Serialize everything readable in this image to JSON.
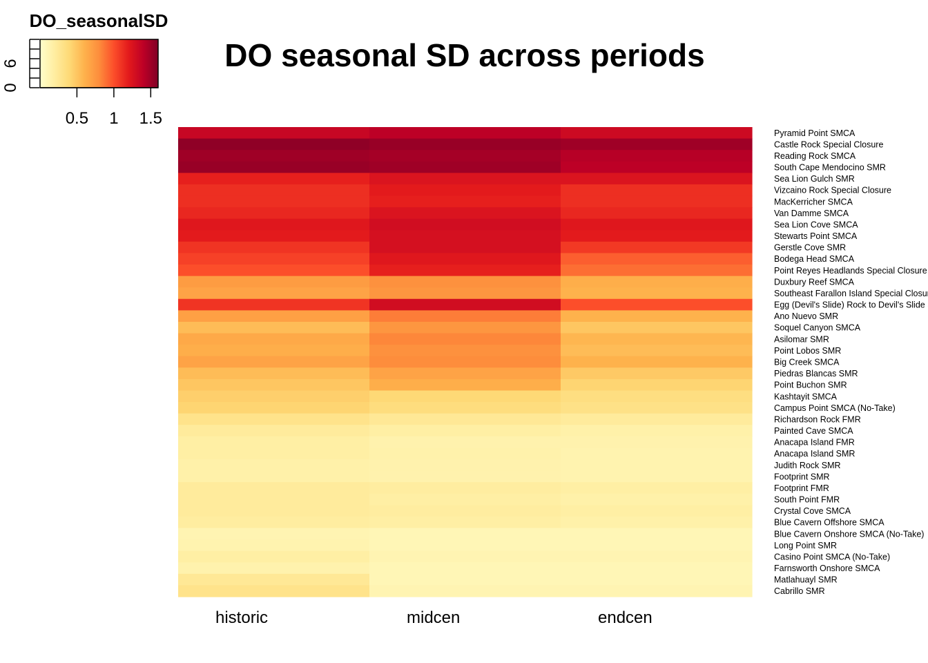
{
  "chart_data": {
    "type": "heatmap",
    "title": "DO seasonal SD across periods",
    "columns": [
      "historic",
      "midcen",
      "endcen"
    ],
    "row_labels": [
      "Pyramid Point SMCA",
      "Castle Rock Special Closure",
      "Reading Rock SMCA",
      "South Cape Mendocino SMR",
      "Sea Lion Gulch SMR",
      "Vizcaino Rock Special Closure",
      "MacKerricher SMCA",
      "Van Damme SMCA",
      "Sea Lion Cove SMCA",
      "Stewarts Point SMCA",
      "Gerstle Cove SMR",
      "Bodega Head SMCA",
      "Point Reyes Headlands Special Closure",
      "Duxbury Reef SMCA",
      "Southeast Farallon Island Special Closure",
      "Egg (Devil's Slide) Rock to Devil's Slide Special Closure",
      "Ano Nuevo SMR",
      "Soquel Canyon SMCA",
      "Asilomar SMR",
      "Point Lobos SMR",
      "Big Creek SMCA",
      "Piedras Blancas SMR",
      "Point Buchon SMR",
      "Kashtayit SMCA",
      "Campus Point SMCA (No-Take)",
      "Richardson Rock FMR",
      "Painted Cave SMCA",
      "Anacapa Island FMR",
      "Anacapa Island SMR",
      "Judith Rock SMR",
      "Footprint SMR",
      "Footprint FMR",
      "South Point FMR",
      "Crystal Cove SMCA",
      "Blue Cavern Offshore SMCA",
      "Blue Cavern Onshore SMCA (No-Take)",
      "Long Point SMR",
      "Casino Point SMCA (No-Take)",
      "Farnsworth Onshore SMCA",
      "Matlahuayl SMR",
      "Cabrillo SMR"
    ],
    "values": [
      [
        1.35,
        1.4,
        1.32
      ],
      [
        1.55,
        1.52,
        1.5
      ],
      [
        1.5,
        1.48,
        1.42
      ],
      [
        1.52,
        1.5,
        1.4
      ],
      [
        1.18,
        1.25,
        1.25
      ],
      [
        1.12,
        1.2,
        1.12
      ],
      [
        1.12,
        1.18,
        1.12
      ],
      [
        1.15,
        1.25,
        1.15
      ],
      [
        1.22,
        1.3,
        1.22
      ],
      [
        1.2,
        1.28,
        1.2
      ],
      [
        1.1,
        1.28,
        1.08
      ],
      [
        1.05,
        1.22,
        0.95
      ],
      [
        1.0,
        1.18,
        0.9
      ],
      [
        0.72,
        0.78,
        0.62
      ],
      [
        0.68,
        0.75,
        0.6
      ],
      [
        1.1,
        1.3,
        1.0
      ],
      [
        0.7,
        0.85,
        0.6
      ],
      [
        0.55,
        0.75,
        0.5
      ],
      [
        0.65,
        0.82,
        0.58
      ],
      [
        0.62,
        0.78,
        0.55
      ],
      [
        0.68,
        0.8,
        0.6
      ],
      [
        0.55,
        0.68,
        0.48
      ],
      [
        0.5,
        0.62,
        0.42
      ],
      [
        0.45,
        0.4,
        0.35
      ],
      [
        0.42,
        0.36,
        0.32
      ],
      [
        0.3,
        0.25,
        0.22
      ],
      [
        0.22,
        0.18,
        0.16
      ],
      [
        0.18,
        0.14,
        0.14
      ],
      [
        0.18,
        0.15,
        0.13
      ],
      [
        0.16,
        0.14,
        0.13
      ],
      [
        0.16,
        0.14,
        0.13
      ],
      [
        0.22,
        0.2,
        0.18
      ],
      [
        0.22,
        0.18,
        0.16
      ],
      [
        0.22,
        0.2,
        0.18
      ],
      [
        0.2,
        0.18,
        0.16
      ],
      [
        0.12,
        0.1,
        0.1
      ],
      [
        0.13,
        0.1,
        0.1
      ],
      [
        0.18,
        0.12,
        0.12
      ],
      [
        0.14,
        0.1,
        0.1
      ],
      [
        0.25,
        0.1,
        0.1
      ],
      [
        0.3,
        0.12,
        0.12
      ]
    ],
    "legend": {
      "title": "DO_seasonalSD",
      "color_ticks": [
        "0.5",
        "1",
        "1.5"
      ],
      "color_tick_values": [
        0.5,
        1.0,
        1.5
      ],
      "count_ticks": [
        "0",
        "6"
      ],
      "range": [
        0.0,
        1.6
      ]
    },
    "colormap": [
      "#FFFFCC",
      "#FFEDA0",
      "#FED976",
      "#FEB24C",
      "#FD8D3C",
      "#FC4E2A",
      "#E31A1C",
      "#BD0026",
      "#800026"
    ]
  }
}
